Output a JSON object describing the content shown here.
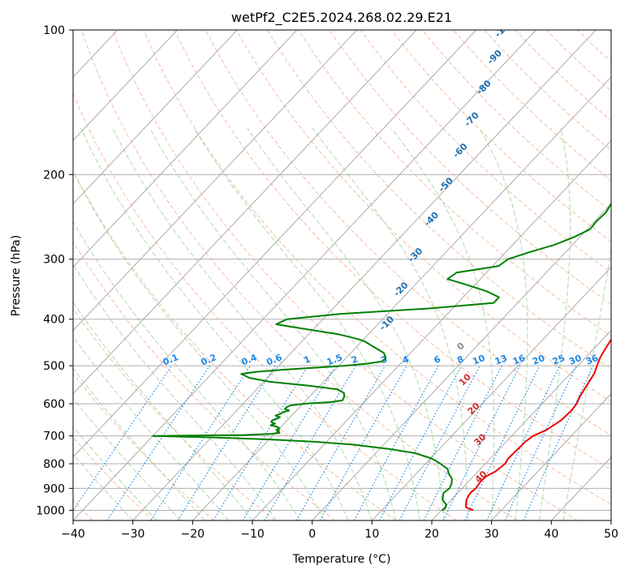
{
  "chart_data": {
    "type": "skew-t",
    "title": "wetPf2_C2E5.2024.268.02.29.E21",
    "xlabel": "Temperature (°C)",
    "ylabel": "Pressure (hPa)",
    "xlim": [
      -40,
      50
    ],
    "ylim": [
      1050,
      100
    ],
    "x_ticks": [
      -40,
      -30,
      -20,
      -10,
      0,
      10,
      20,
      30,
      40,
      50
    ],
    "y_ticks": [
      100,
      200,
      300,
      400,
      500,
      600,
      700,
      800,
      900,
      1000
    ],
    "grid": true,
    "colors": {
      "temperature": "#ee0000",
      "dewpoint": "#008000",
      "isotherm": "#999999",
      "dry_adiabat": "#f4a582",
      "moist_adiabat": "#8fc98f",
      "mixing_ratio": "#1e88e5",
      "pseudo_adiabat_label": "#d32f2f",
      "dry_label": "#1f6fb0"
    },
    "series": [
      {
        "name": "Temperature",
        "pressure": [
          1000,
          985,
          950,
          920,
          900,
          870,
          850,
          830,
          800,
          780,
          750,
          720,
          700,
          680,
          650,
          620,
          600,
          580,
          560,
          540,
          520,
          500,
          480,
          460,
          440,
          420,
          400,
          380,
          360,
          340,
          320,
          300,
          280,
          260,
          240,
          220,
          200,
          180,
          160,
          150,
          140,
          130,
          120,
          110,
          105,
          100
        ],
        "temperature": [
          25.3,
          23.6,
          22.5,
          22.1,
          22.3,
          22.0,
          22.1,
          22.9,
          23.3,
          23.0,
          23.1,
          23.2,
          23.6,
          24.9,
          25.8,
          26.0,
          25.8,
          25.2,
          24.8,
          24.4,
          24.0,
          23.2,
          22.4,
          21.9,
          21.4,
          21.0,
          20.2,
          19.0,
          17.7,
          16.4,
          15.3,
          14.2,
          12.7,
          11.1,
          9.5,
          7.8,
          5.8,
          4.2,
          2.5,
          0.9,
          -0.6,
          -0.5,
          0.3,
          2.9,
          4.7,
          6.2
        ]
      },
      {
        "name": "Dewpoint",
        "pressure": [
          1000,
          990,
          975,
          950,
          920,
          900,
          880,
          860,
          840,
          820,
          800,
          780,
          760,
          745,
          730,
          720,
          712,
          705,
          700,
          697,
          693,
          690,
          686,
          683,
          680,
          675,
          670,
          665,
          660,
          655,
          650,
          645,
          640,
          635,
          630,
          625,
          620,
          615,
          610,
          605,
          600,
          595,
          590,
          580,
          570,
          560,
          550,
          540,
          530,
          520,
          515,
          510,
          505,
          500,
          495,
          490,
          485,
          480,
          475,
          470,
          465,
          460,
          455,
          450,
          445,
          440,
          430,
          420,
          410,
          400,
          390,
          380,
          370,
          360,
          350,
          340,
          330,
          320,
          310,
          300,
          290,
          280,
          270,
          260,
          250,
          240,
          230,
          220,
          210,
          200,
          190,
          180,
          170,
          160,
          150,
          140,
          130,
          120,
          115,
          110,
          105,
          100
        ],
        "temperature": [
          20.1,
          20.3,
          20.0,
          18.5,
          17.6,
          17.9,
          17.5,
          16.8,
          15.5,
          14.5,
          12.5,
          10.2,
          6.5,
          1.5,
          -5.0,
          -12.0,
          -20.0,
          -30.0,
          -40.0,
          -25.0,
          -20.5,
          -19.3,
          -19.8,
          -19.7,
          -20.3,
          -20.0,
          -20.7,
          -22.0,
          -21.5,
          -22.4,
          -22.5,
          -22.0,
          -21.7,
          -22.7,
          -22.2,
          -22.0,
          -21.2,
          -22.2,
          -22.2,
          -21.8,
          -19.8,
          -15.5,
          -13.9,
          -14.2,
          -14.8,
          -16.5,
          -22.0,
          -29.0,
          -33.0,
          -35.0,
          -33.0,
          -29.0,
          -24.0,
          -19.0,
          -15.5,
          -13.5,
          -13.2,
          -13.5,
          -14.0,
          -14.5,
          -15.5,
          -16.5,
          -17.5,
          -18.5,
          -19.5,
          -21.0,
          -25.0,
          -31.0,
          -37.0,
          -36.0,
          -28.0,
          -14.0,
          -4.0,
          -4.0,
          -7.0,
          -11.0,
          -15.5,
          -15.0,
          -9.0,
          -8.5,
          -6.0,
          -3.0,
          -1.0,
          0.5,
          0.3,
          0.5,
          0.0,
          -0.5,
          -0.2,
          2.2,
          1.5,
          0.0,
          -1.0,
          -1.5,
          -1.6,
          -1.9,
          -2.2,
          -2.3,
          -2.5,
          -2.2,
          -1.0,
          0.5
        ]
      }
    ],
    "dry_adiabat_labels": [
      "-100",
      "-90",
      "-80",
      "-70",
      "-60",
      "-50",
      "-40",
      "-30",
      "-20",
      "-10",
      "0",
      "10",
      "20",
      "30",
      "40"
    ],
    "mixing_ratio_labels": [
      "0.1",
      "0.2",
      "0.4",
      "0.6",
      "1",
      "1.5",
      "2",
      "3",
      "4",
      "6",
      "8",
      "10",
      "13",
      "16",
      "20",
      "25",
      "30",
      "36"
    ]
  }
}
